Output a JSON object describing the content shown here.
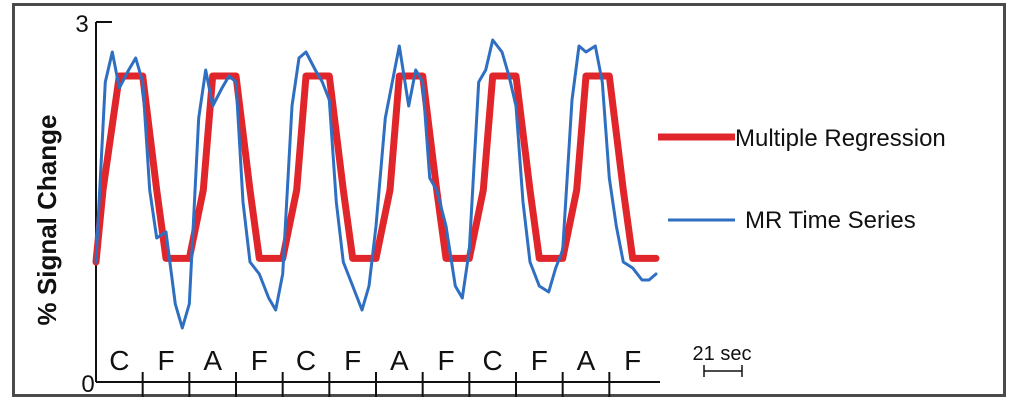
{
  "chart_data": {
    "type": "line",
    "ylabel": "% Signal Change",
    "ylim": [
      0,
      3
    ],
    "y_ticks": [
      "0",
      "3"
    ],
    "block_labels": [
      "C",
      "F",
      "A",
      "F",
      "C",
      "F",
      "A",
      "F",
      "C",
      "F",
      "A",
      "F"
    ],
    "scale_bar_label": "21 sec",
    "grid": false,
    "legend_position": "right",
    "series": [
      {
        "name": "Multiple Regression",
        "color": "#e0262a",
        "x": [
          0,
          0.15,
          0.5,
          1.0,
          1.3,
          1.5,
          2.0,
          2.3,
          2.5,
          3.0,
          3.3,
          3.5,
          4.0,
          4.3,
          4.5,
          5.0,
          5.3,
          5.5,
          6.0,
          6.3,
          6.5,
          7.0,
          7.3,
          7.5,
          8.0,
          8.3,
          8.5,
          9.0,
          9.3,
          9.5,
          10.0,
          10.3,
          10.5,
          11.0,
          11.3,
          11.5,
          12.0
        ],
        "values": [
          1.0,
          1.6,
          2.55,
          2.55,
          1.6,
          1.03,
          1.03,
          1.6,
          2.55,
          2.55,
          1.6,
          1.03,
          1.03,
          1.6,
          2.55,
          2.55,
          1.6,
          1.03,
          1.03,
          1.6,
          2.55,
          2.55,
          1.6,
          1.03,
          1.03,
          1.6,
          2.55,
          2.55,
          1.6,
          1.03,
          1.03,
          1.6,
          2.55,
          2.55,
          1.6,
          1.03,
          1.03
        ]
      },
      {
        "name": "MR Time Series",
        "color": "#2f6fc2",
        "x": [
          0,
          0.2,
          0.35,
          0.5,
          0.7,
          0.85,
          1.0,
          1.15,
          1.3,
          1.5,
          1.7,
          1.85,
          2.0,
          2.2,
          2.35,
          2.5,
          2.7,
          2.85,
          3.0,
          3.15,
          3.3,
          3.5,
          3.7,
          3.85,
          4.0,
          4.2,
          4.35,
          4.5,
          4.7,
          4.85,
          5.0,
          5.15,
          5.3,
          5.5,
          5.7,
          5.85,
          6.0,
          6.2,
          6.35,
          6.5,
          6.7,
          6.85,
          7.0,
          7.15,
          7.3,
          7.5,
          7.7,
          7.85,
          8.0,
          8.2,
          8.35,
          8.5,
          8.7,
          8.85,
          9.0,
          9.15,
          9.3,
          9.5,
          9.7,
          9.85,
          10.0,
          10.2,
          10.35,
          10.5,
          10.7,
          10.85,
          11.0,
          11.15,
          11.3,
          11.5,
          11.7,
          11.85,
          12.0
        ],
        "values": [
          1.0,
          2.5,
          2.75,
          2.45,
          2.6,
          2.7,
          2.5,
          1.6,
          1.2,
          1.25,
          0.65,
          0.45,
          0.65,
          2.2,
          2.6,
          2.3,
          2.45,
          2.55,
          2.5,
          1.5,
          1.0,
          0.9,
          0.7,
          0.6,
          0.9,
          2.3,
          2.7,
          2.75,
          2.6,
          2.5,
          2.35,
          1.5,
          1.0,
          0.8,
          0.6,
          0.8,
          1.3,
          2.2,
          2.5,
          2.8,
          2.3,
          2.6,
          2.5,
          1.7,
          1.6,
          1.3,
          0.8,
          0.7,
          1.1,
          2.5,
          2.6,
          2.85,
          2.75,
          2.55,
          2.3,
          1.5,
          1.0,
          0.8,
          0.75,
          0.95,
          1.1,
          2.35,
          2.8,
          2.75,
          2.8,
          2.5,
          1.7,
          1.3,
          1.0,
          0.95,
          0.85,
          0.85,
          0.9
        ]
      }
    ]
  }
}
